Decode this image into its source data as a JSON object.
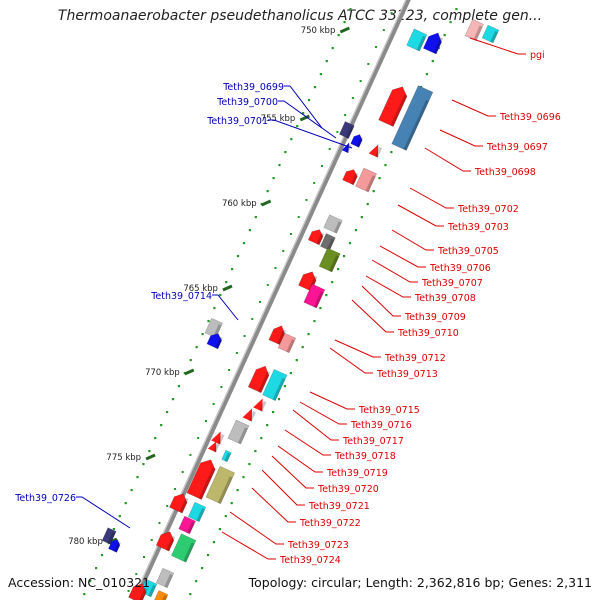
{
  "title": "Thermoanaerobacter pseudethanolicus ATCC 33223, complete gen...",
  "accession_label": "Accession: NC_010321",
  "topology_label": "Topology: circular; Length: 2,362,816 bp; Genes: 2,311",
  "ticks": [
    {
      "label": "750 kbp"
    },
    {
      "label": "755 kbp"
    },
    {
      "label": "760 kbp"
    },
    {
      "label": "765 kbp"
    },
    {
      "label": "770 kbp"
    },
    {
      "label": "775 kbp"
    },
    {
      "label": "780 kbp"
    }
  ],
  "colors": {
    "backbone": "#8a8a8a",
    "right_label": "#dd0000",
    "left_label": "#0000bb",
    "tick": "#226622",
    "dots": "#229922",
    "red": "#ff1a1a",
    "light_red": "#f59a9a",
    "blue": "#1010ee",
    "navy": "#3a3a7a",
    "cyan": "#1dd9e3",
    "steel": "#4682b4",
    "gray": "#bdbdbd",
    "dark_gray": "#6e6e6e",
    "olive": "#6b8e23",
    "magenta": "#ff1493",
    "khaki": "#bdb76b",
    "green": "#2ecc71",
    "orange": "#ff8c00"
  },
  "right_labels": [
    "pgi",
    "Teth39_0696",
    "Teth39_0697",
    "Teth39_0698",
    "Teth39_0702",
    "Teth39_0703",
    "Teth39_0705",
    "Teth39_0706",
    "Teth39_0707",
    "Teth39_0708",
    "Teth39_0709",
    "Teth39_0710",
    "Teth39_0712",
    "Teth39_0713",
    "Teth39_0715",
    "Teth39_0716",
    "Teth39_0717",
    "Teth39_0718",
    "Teth39_0719",
    "Teth39_0720",
    "Teth39_0721",
    "Teth39_0722",
    "Teth39_0723",
    "Teth39_0724"
  ],
  "left_labels": [
    "Teth39_0699",
    "Teth39_0700",
    "Teth39_0701",
    "Teth39_0714",
    "Teth39_0726"
  ]
}
